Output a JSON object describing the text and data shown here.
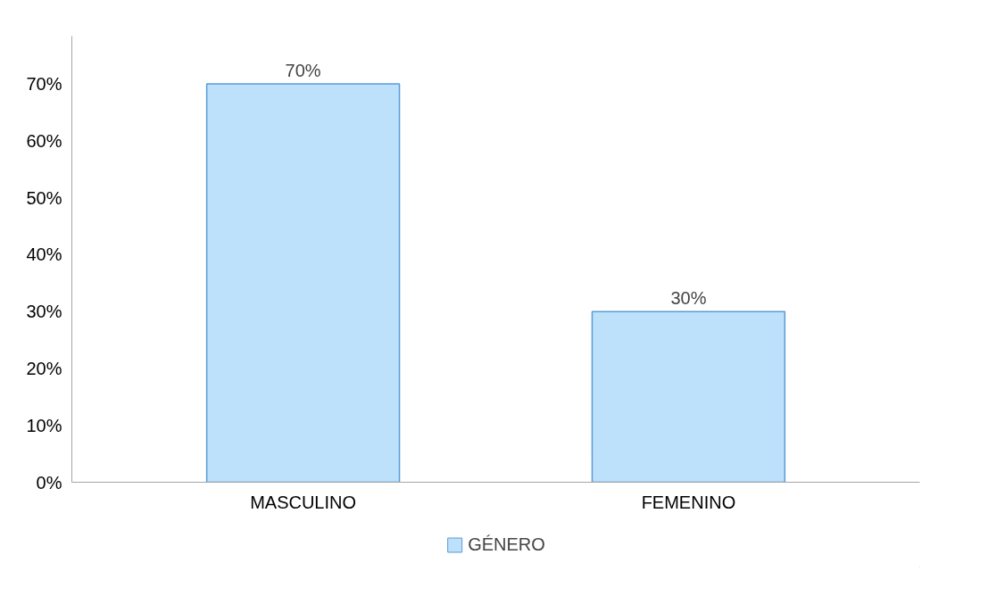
{
  "chart_data": {
    "type": "bar",
    "categories": [
      "MASCULINO",
      "FEMENINO"
    ],
    "series": [
      {
        "name": "GÉNERO",
        "color": "#bde0fb",
        "values": [
          70,
          30
        ],
        "value_labels": [
          "70%",
          "30%"
        ]
      }
    ],
    "ylim": [
      0,
      70
    ],
    "yticks": [
      {
        "value": 0,
        "label": "0%"
      },
      {
        "value": 10,
        "label": "10%"
      },
      {
        "value": 20,
        "label": "20%"
      },
      {
        "value": 30,
        "label": "30%"
      },
      {
        "value": 40,
        "label": "40%"
      },
      {
        "value": 50,
        "label": "50%"
      },
      {
        "value": 60,
        "label": "60%"
      },
      {
        "value": 70,
        "label": "70%"
      }
    ],
    "grid": false,
    "legend": "bottom"
  }
}
